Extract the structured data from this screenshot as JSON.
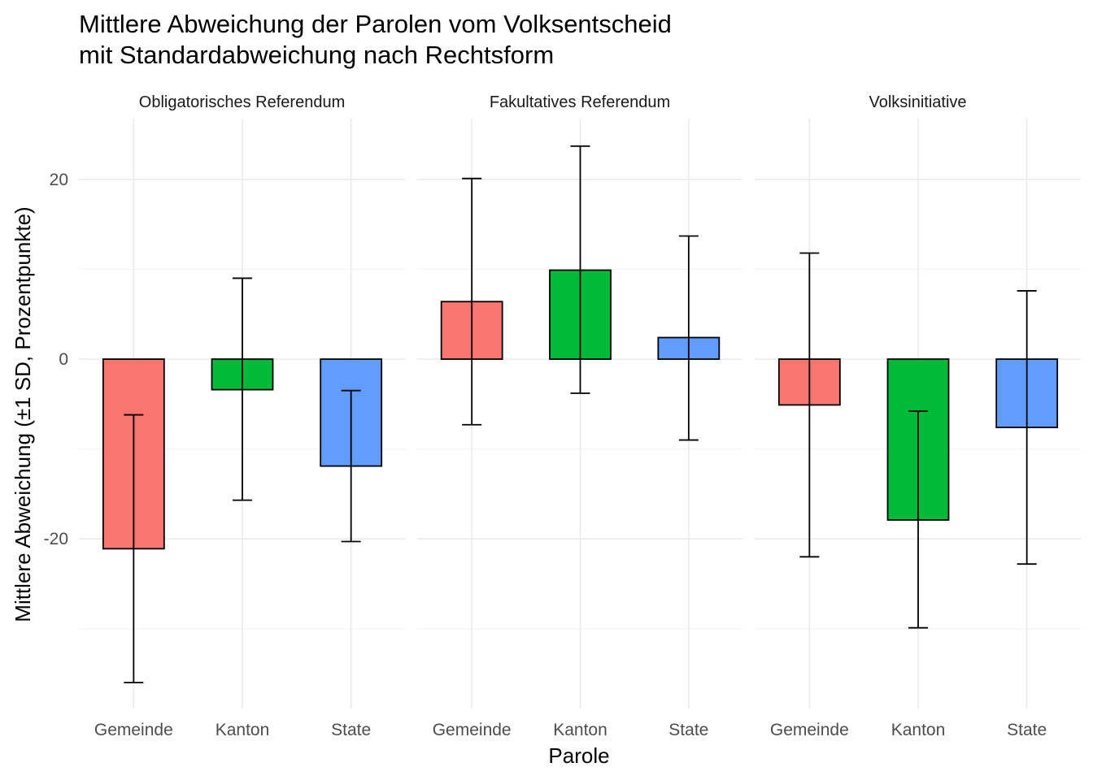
{
  "chart_data": {
    "type": "bar",
    "title_line1": "Mittlere Abweichung der Parolen vom Volksentscheid",
    "title_line2": "mit Standardabweichung nach Rechtsform",
    "xlabel": "Parole",
    "ylabel": "Mittlere Abweichung (±1 SD, Prozentpunkte)",
    "ylim": [
      -38,
      27
    ],
    "yticks": [
      -20,
      0,
      20
    ],
    "grid": true,
    "categories": [
      "Gemeinde",
      "Kanton",
      "State"
    ],
    "colors": {
      "Gemeinde": "#F8766D",
      "Kanton": "#00BA38",
      "State": "#619CFF"
    },
    "panels": [
      {
        "name": "Obligatorisches Referendum",
        "values": [
          -21.1,
          -3.4,
          -11.9
        ],
        "error_low": [
          -36.0,
          -15.7,
          -20.3
        ],
        "error_high": [
          -6.2,
          9.0,
          -3.5
        ]
      },
      {
        "name": "Fakultatives Referendum",
        "values": [
          6.4,
          9.9,
          2.4
        ],
        "error_low": [
          -7.3,
          -3.8,
          -9.0
        ],
        "error_high": [
          20.1,
          23.7,
          13.7
        ]
      },
      {
        "name": "Volksinitiative",
        "values": [
          -5.1,
          -17.9,
          -7.6
        ],
        "error_low": [
          -22.0,
          -29.9,
          -22.8
        ],
        "error_high": [
          11.8,
          -5.8,
          7.6
        ]
      }
    ]
  }
}
